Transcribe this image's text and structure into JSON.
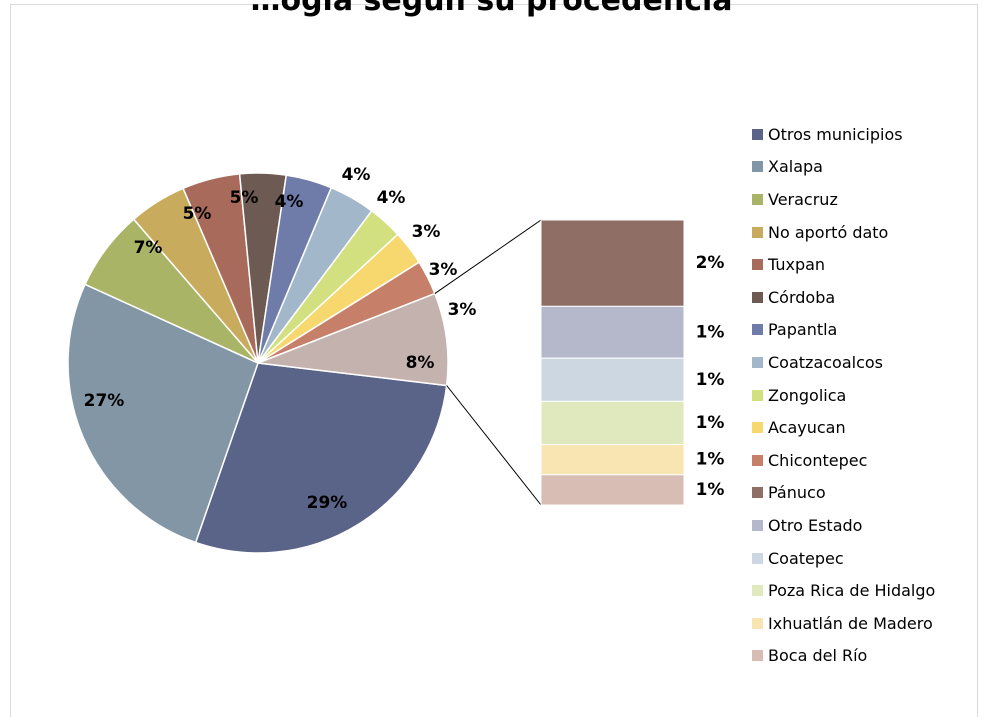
{
  "chart_data": {
    "type": "pie",
    "title": "…ogía segun su procedencia",
    "labels_format": "percent",
    "slices": [
      {
        "name": "Otros municipios",
        "value": 29,
        "label": "29%",
        "color": "#5a6388"
      },
      {
        "name": "Xalapa",
        "value": 27,
        "label": "27%",
        "color": "#8296a6"
      },
      {
        "name": "Veracruz",
        "value": 7,
        "label": "7%",
        "color": "#a9b466"
      },
      {
        "name": "No aportó dato",
        "value": 5,
        "label": "5%",
        "color": "#c9ab5e"
      },
      {
        "name": "Tuxpan",
        "value": 5,
        "label": "5%",
        "color": "#a86a5b"
      },
      {
        "name": "Córdoba",
        "value": 4,
        "label": "4%",
        "color": "#6d5a53"
      },
      {
        "name": "Papantla",
        "value": 4,
        "label": "4%",
        "color": "#6f7ba8"
      },
      {
        "name": "Coatzacoalcos",
        "value": 4,
        "label": "4%",
        "color": "#a3b7cb"
      },
      {
        "name": "Zongolica",
        "value": 3,
        "label": "3%",
        "color": "#d3e07f"
      },
      {
        "name": "Acayucan",
        "value": 3,
        "label": "3%",
        "color": "#f6d86f"
      },
      {
        "name": "Chicontepec",
        "value": 3,
        "label": "3%",
        "color": "#c6806a"
      },
      {
        "name": "Other (bar of pie)",
        "value": 8,
        "label": "8%",
        "color": "#c3b2ad"
      }
    ],
    "bar_of_pie": [
      {
        "name": "Pánuco",
        "value": 2,
        "label": "2%",
        "color": "#8f6f65"
      },
      {
        "name": "Otro Estado",
        "value": 1.2,
        "label": "1%",
        "color": "#b5b7cb"
      },
      {
        "name": "Coatepec",
        "value": 1,
        "label": "1%",
        "color": "#ccd7e2"
      },
      {
        "name": "Poza Rica de Hidalgo",
        "value": 1,
        "label": "1%",
        "color": "#e0e9bd"
      },
      {
        "name": "Ixhuatlán de Madero",
        "value": 0.7,
        "label": "1%",
        "color": "#f9e5b1"
      },
      {
        "name": "Boca del Río",
        "value": 0.7,
        "label": "1%",
        "color": "#d7bdb4"
      }
    ],
    "legend": {
      "position": "right",
      "entries": [
        {
          "name": "Otros municipios",
          "color": "#5a6388"
        },
        {
          "name": "Xalapa",
          "color": "#8296a6"
        },
        {
          "name": "Veracruz",
          "color": "#a9b466"
        },
        {
          "name": "No aportó dato",
          "color": "#c9ab5e"
        },
        {
          "name": "Tuxpan",
          "color": "#a86a5b"
        },
        {
          "name": "Córdoba",
          "color": "#6d5a53"
        },
        {
          "name": "Papantla",
          "color": "#6f7ba8"
        },
        {
          "name": "Coatzacoalcos",
          "color": "#a3b7cb"
        },
        {
          "name": "Zongolica",
          "color": "#d3e07f"
        },
        {
          "name": "Acayucan",
          "color": "#f6d86f"
        },
        {
          "name": "Chicontepec",
          "color": "#c6806a"
        },
        {
          "name": "Pánuco",
          "color": "#8f6f65"
        },
        {
          "name": "Otro Estado",
          "color": "#b5b7cb"
        },
        {
          "name": "Coatepec",
          "color": "#ccd7e2"
        },
        {
          "name": "Poza Rica de Hidalgo",
          "color": "#e0e9bd"
        },
        {
          "name": "Ixhuatlán de Madero",
          "color": "#f9e5b1"
        },
        {
          "name": "Boca del Río",
          "color": "#d7bdb4"
        }
      ]
    }
  }
}
